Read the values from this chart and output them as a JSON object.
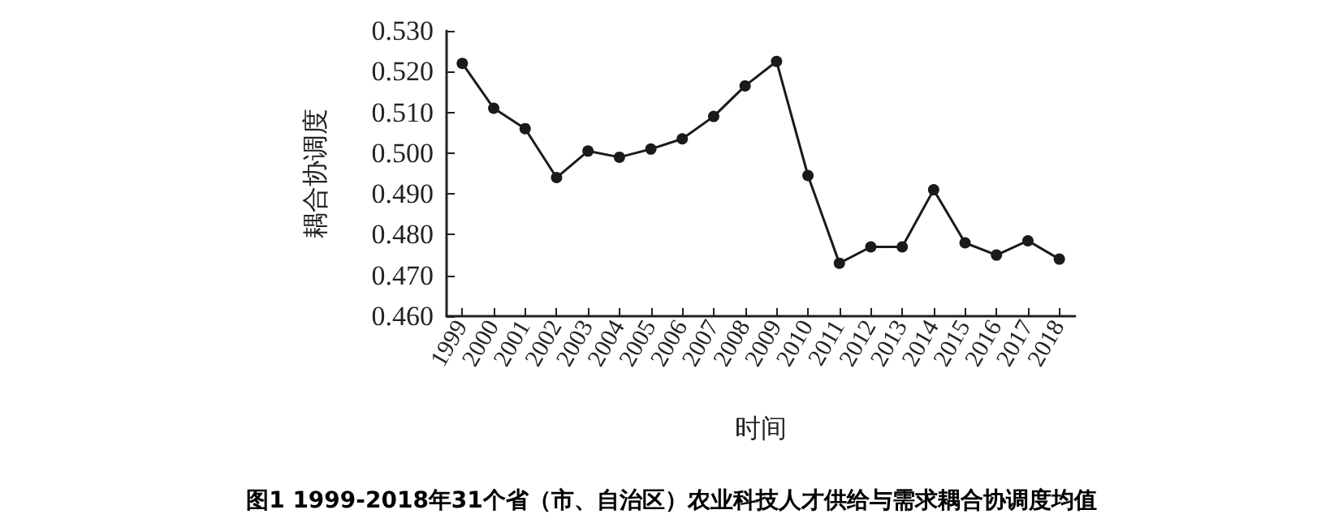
{
  "chart_data": {
    "type": "line",
    "title": "图1 1999-2018年31个省（市、自治区）农业科技人才供给与需求耦合协调度均值",
    "xlabel": "时间",
    "ylabel": "耦合协调度",
    "categories": [
      "1999",
      "2000",
      "2001",
      "2002",
      "2003",
      "2004",
      "2005",
      "2006",
      "2007",
      "2008",
      "2009",
      "2010",
      "2011",
      "2012",
      "2013",
      "2014",
      "2015",
      "2016",
      "2017",
      "2018"
    ],
    "series": [
      {
        "color": "#1a1a1a",
        "values": [
          0.522,
          0.511,
          0.506,
          0.494,
          0.5005,
          0.499,
          0.501,
          0.5035,
          0.509,
          0.5165,
          0.5225,
          0.4945,
          0.473,
          0.477,
          0.477,
          0.491,
          0.478,
          0.475,
          0.4785,
          0.474
        ]
      }
    ],
    "ylim": [
      0.46,
      0.53
    ],
    "yticks": [
      {
        "value": 0.46,
        "label": "0.460"
      },
      {
        "value": 0.47,
        "label": "0.470"
      },
      {
        "value": 0.48,
        "label": "0.480"
      },
      {
        "value": 0.49,
        "label": "0.490"
      },
      {
        "value": 0.5,
        "label": "0.500"
      },
      {
        "value": 0.51,
        "label": "0.510"
      },
      {
        "value": 0.52,
        "label": "0.520"
      },
      {
        "value": 0.53,
        "label": "0.530"
      }
    ],
    "grid": false,
    "marker": "circle",
    "line_style": "solid"
  }
}
